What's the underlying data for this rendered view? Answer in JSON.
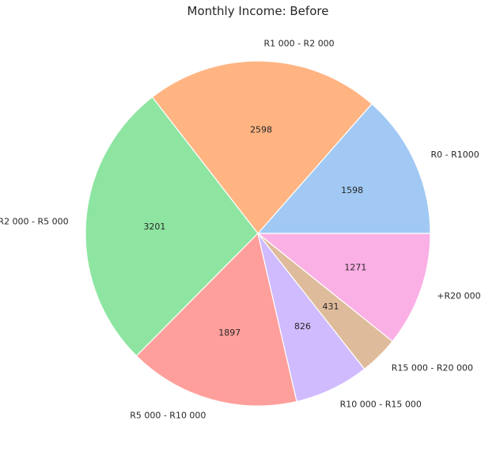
{
  "chart_data": {
    "type": "pie",
    "title": "Monthly Income: Before",
    "categories": [
      "R0 - R1000",
      "R1 000 - R2 000",
      "R2 000 - R5 000",
      "R5 000 - R10 000",
      "R10 000 - R15 000",
      "R15 000 - R20 000",
      "+R20 000"
    ],
    "values": [
      1598,
      2598,
      3201,
      1897,
      826,
      431,
      1271
    ],
    "colors": [
      "#a1c9f4",
      "#ffb482",
      "#8de5a1",
      "#ff9f9b",
      "#d0bbff",
      "#debb9b",
      "#fab0e4"
    ],
    "start_angle_deg": 0,
    "direction": "counterclockwise"
  }
}
